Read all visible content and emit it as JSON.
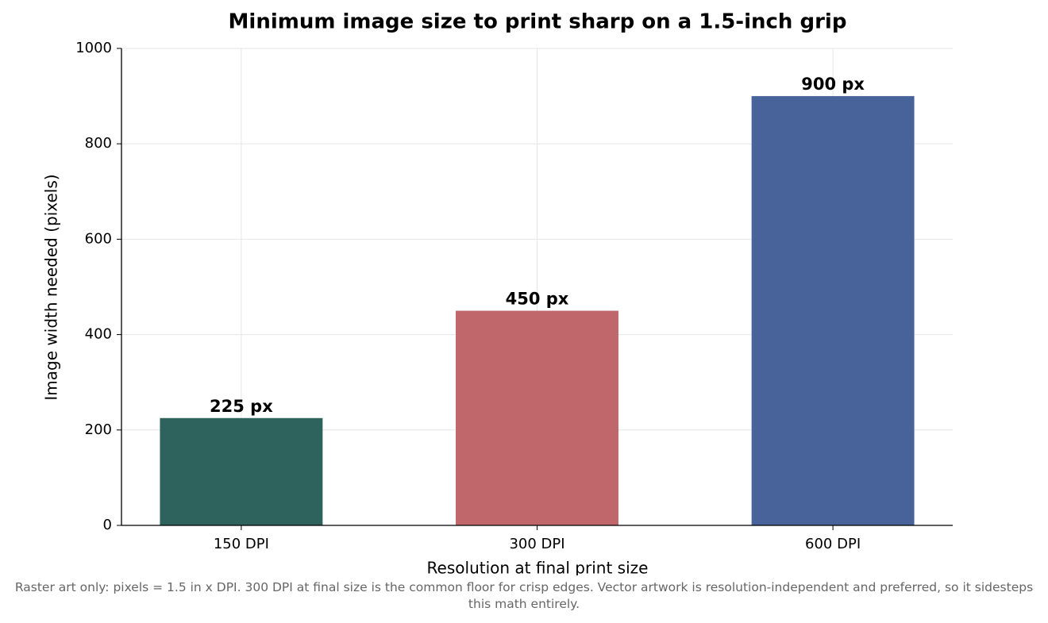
{
  "chart_data": {
    "type": "bar",
    "title": "Minimum image size to print sharp on a 1.5-inch grip",
    "x_label": "Resolution at final print size",
    "y_label": "Image width needed (pixels)",
    "categories": [
      "150 DPI",
      "300 DPI",
      "600 DPI"
    ],
    "values": [
      225,
      450,
      900
    ],
    "value_labels": [
      "225 px",
      "450 px",
      "900 px"
    ],
    "colors": [
      "#2e625c",
      "#c0676b",
      "#48629a"
    ],
    "ylim": [
      0,
      1000
    ],
    "yticks": [
      0,
      200,
      400,
      600,
      800,
      1000
    ],
    "grid": true,
    "footnote": "Raster art only: pixels = 1.5 in x DPI. 300 DPI at final size is the common floor for crisp edges. Vector artwork is resolution-independent and preferred, so it sidesteps this math entirely."
  }
}
